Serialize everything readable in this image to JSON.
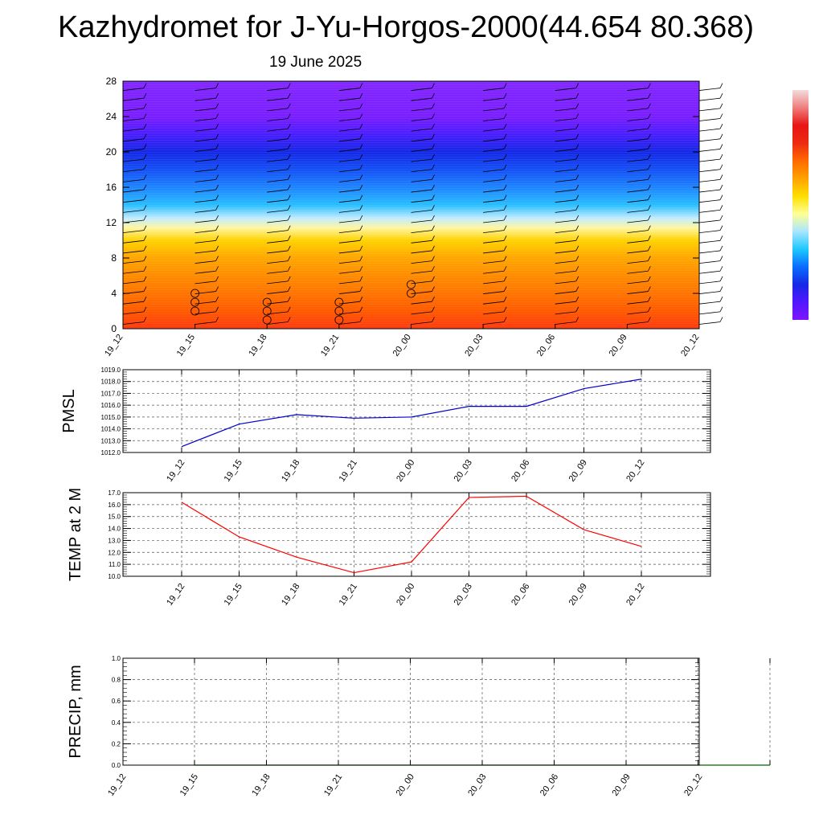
{
  "title": "Kazhydromet for J-Yu-Horgos-2000(44.654 80.368)",
  "date": "19 June 2025",
  "colorbar": {
    "colors": [
      "#f2dcdc",
      "#ef7e7e",
      "#e81414",
      "#ed2a12",
      "#ff6a00",
      "#ffa200",
      "#ffdf00",
      "#ffff96",
      "#a8e6ff",
      "#1ec8ff",
      "#0a6cff",
      "#1628e6",
      "#5218ff",
      "#7b16ff"
    ]
  },
  "chart_data": [
    {
      "type": "heatmap",
      "name": "cross-section",
      "x": [
        "19_12",
        "19_15",
        "19_18",
        "19_21",
        "20_00",
        "20_03",
        "20_06",
        "20_09",
        "20_12"
      ],
      "ylim": [
        0,
        28
      ],
      "yticks": [
        0,
        4,
        8,
        12,
        16,
        20,
        24,
        28
      ],
      "bands": [
        {
          "y": 0,
          "color": "#ff3a10"
        },
        {
          "y": 2,
          "color": "#ff5a00"
        },
        {
          "y": 4,
          "color": "#ff7400"
        },
        {
          "y": 6,
          "color": "#ff8c00"
        },
        {
          "y": 8,
          "color": "#ffa600"
        },
        {
          "y": 10,
          "color": "#ffd200"
        },
        {
          "y": 11.4,
          "color": "#fff6a0"
        },
        {
          "y": 12.5,
          "color": "#c2ecff"
        },
        {
          "y": 14,
          "color": "#28beff"
        },
        {
          "y": 16,
          "color": "#1e84ff"
        },
        {
          "y": 18,
          "color": "#1450f5"
        },
        {
          "y": 20,
          "color": "#1428e6"
        },
        {
          "y": 22,
          "color": "#4a1eff"
        },
        {
          "y": 24,
          "color": "#7a1eff"
        },
        {
          "y": 28,
          "color": "#8228ff"
        }
      ],
      "markers": [
        {
          "x": "19_15",
          "y": [
            2,
            3,
            4
          ]
        },
        {
          "x": "19_18",
          "y": [
            1,
            2,
            3
          ]
        },
        {
          "x": "19_21",
          "y": [
            1,
            2,
            3
          ]
        },
        {
          "x": "20_00",
          "y": [
            4,
            5
          ]
        }
      ]
    },
    {
      "type": "line",
      "name": "pmsl",
      "ylabel": "PMSL",
      "x": [
        "19_12",
        "19_15",
        "19_18",
        "19_21",
        "20_00",
        "20_03",
        "20_06",
        "20_09",
        "20_12"
      ],
      "values": [
        1012.5,
        1014.4,
        1015.2,
        1014.9,
        1015.0,
        1015.9,
        1015.9,
        1017.4,
        1018.2
      ],
      "ylim": [
        1012.0,
        1019.0
      ],
      "yticks": [
        "1012.0",
        "1013.0",
        "1014.0",
        "1015.0",
        "1016.0",
        "1017.0",
        "1018.0",
        "1019.0"
      ],
      "color": "#0000cc",
      "grid": true
    },
    {
      "type": "line",
      "name": "temp",
      "ylabel": "TEMP at 2 M",
      "x": [
        "19_12",
        "19_15",
        "19_18",
        "19_21",
        "20_00",
        "20_03",
        "20_06",
        "20_09",
        "20_12"
      ],
      "values": [
        16.2,
        13.3,
        11.6,
        10.3,
        11.2,
        16.6,
        16.7,
        13.9,
        12.5
      ],
      "ylim": [
        10.0,
        17.0
      ],
      "yticks": [
        "10.0",
        "11.0",
        "12.0",
        "13.0",
        "14.0",
        "15.0",
        "16.0",
        "17.0"
      ],
      "color": "#ff0000",
      "grid": true
    },
    {
      "type": "line",
      "name": "precip",
      "ylabel": "PRECIP, mm",
      "x": [
        "19_12",
        "19_15",
        "19_18",
        "19_21",
        "20_00",
        "20_03",
        "20_06",
        "20_09",
        "20_12"
      ],
      "values": [
        0,
        0,
        0,
        0,
        0,
        0,
        0,
        0,
        0
      ],
      "ylim": [
        0.0,
        1.0
      ],
      "yticks": [
        "0.0",
        "0.2",
        "0.4",
        "0.6",
        "0.8",
        "1.0"
      ],
      "color": "#006400",
      "grid": true
    }
  ]
}
